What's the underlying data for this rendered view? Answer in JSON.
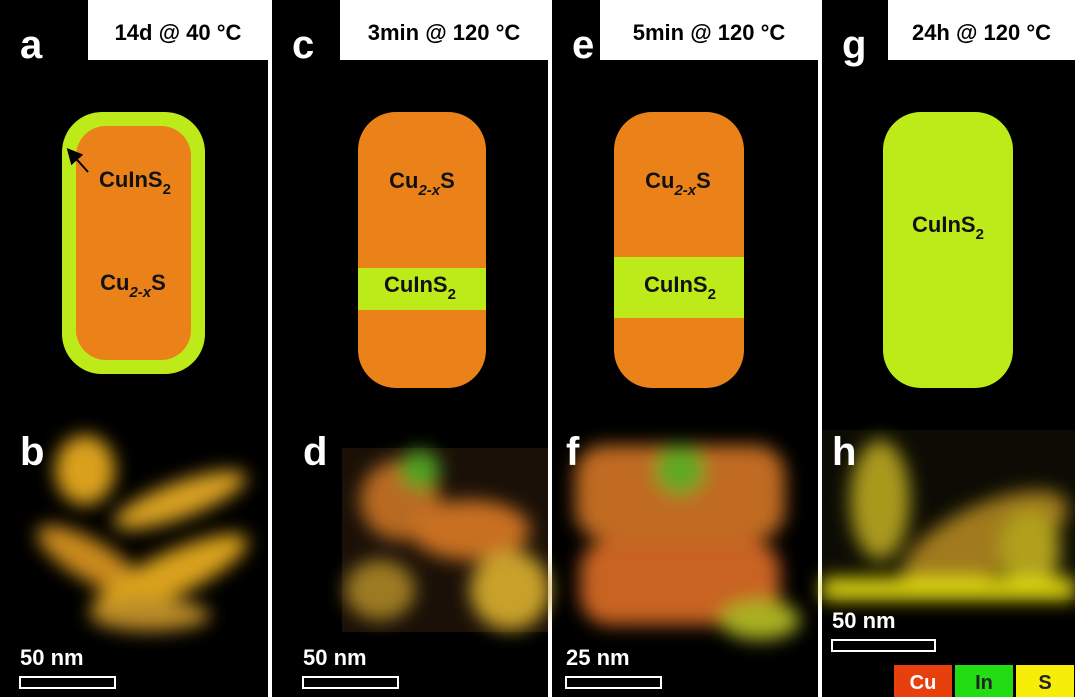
{
  "columns": [
    {
      "top_letter": "a",
      "title": "14d @ 40 °C",
      "labels": [
        {
          "text": "CuInS",
          "sub": "2"
        },
        {
          "text": "Cu",
          "sub": "2-x",
          "after": "S"
        }
      ],
      "bottom_letter": "b",
      "scale_bar": "50 nm"
    },
    {
      "top_letter": "c",
      "title": "3min @ 120 °C",
      "labels": [
        {
          "text": "Cu",
          "sub": "2-x",
          "after": "S"
        },
        {
          "text": "CuInS",
          "sub": "2"
        }
      ],
      "bottom_letter": "d",
      "scale_bar": "50 nm"
    },
    {
      "top_letter": "e",
      "title": "5min @ 120 °C",
      "labels": [
        {
          "text": "Cu",
          "sub": "2-x",
          "after": "S"
        },
        {
          "text": "CuInS",
          "sub": "2"
        }
      ],
      "bottom_letter": "f",
      "scale_bar": "25 nm"
    },
    {
      "top_letter": "g",
      "title": "24h @ 120 °C",
      "labels": [
        {
          "text": "CuInS",
          "sub": "2"
        }
      ],
      "bottom_letter": "h",
      "scale_bar": "50 nm"
    }
  ],
  "legend": [
    "Cu",
    "In",
    "S"
  ]
}
